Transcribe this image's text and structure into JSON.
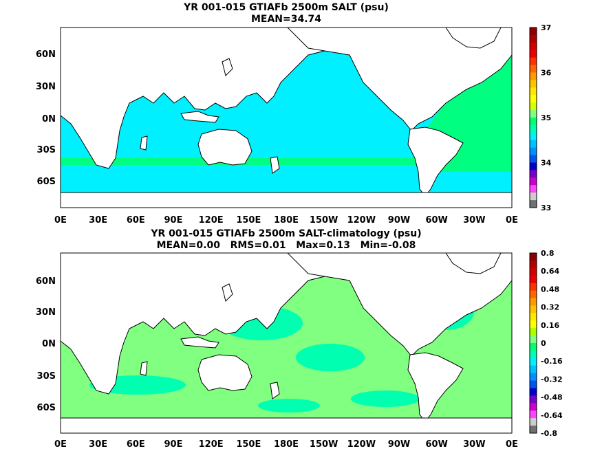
{
  "panels": [
    {
      "title": "YR 001-015 GTIAFb 2500m SALT (psu)",
      "subtitle": "MEAN=34.74",
      "lat_labels": [
        "60N",
        "30N",
        "0N",
        "30S",
        "60S"
      ],
      "lon_labels": [
        "0E",
        "30E",
        "60E",
        "90E",
        "120E",
        "150E",
        "180E",
        "150W",
        "120W",
        "90W",
        "60W",
        "30W",
        "0E"
      ],
      "colorbar": {
        "labels": [
          "37",
          "36",
          "35",
          "34",
          "33"
        ],
        "colors": [
          "#8b0000",
          "#b00000",
          "#d20000",
          "#ee0000",
          "#ff3300",
          "#ff6600",
          "#ff9a00",
          "#ffc400",
          "#ffe800",
          "#ffff00",
          "#d4ff00",
          "#80ff80",
          "#00ff70",
          "#00ffb0",
          "#00f0ff",
          "#00c0ff",
          "#0090ff",
          "#0055ee",
          "#0000cc",
          "#7700cc",
          "#cc00cc",
          "#ff44ff",
          "#cccccc",
          "#707070"
        ]
      },
      "ocean_color": "#00f0ff",
      "field_color_secondary": "#00ff80"
    },
    {
      "title": "YR 001-015 GTIAFb 2500m SALT-climatology (psu)",
      "subtitle": "MEAN=0.00   RMS=0.01   Max=0.13   Min=-0.08",
      "lat_labels": [
        "60N",
        "30N",
        "0N",
        "30S",
        "60S"
      ],
      "lon_labels": [
        "0E",
        "30E",
        "60E",
        "90E",
        "120E",
        "150E",
        "180E",
        "150W",
        "120W",
        "90W",
        "60W",
        "30W",
        "0E"
      ],
      "colorbar": {
        "labels": [
          "0.8",
          "0.64",
          "0.48",
          "0.32",
          "0.16",
          "0",
          "-0.16",
          "-0.32",
          "-0.48",
          "-0.64",
          "-0.8"
        ],
        "colors": [
          "#8b0000",
          "#b00000",
          "#d20000",
          "#ee0000",
          "#ff3300",
          "#ff6600",
          "#ff9a00",
          "#ffc400",
          "#ffe800",
          "#ffff00",
          "#aaff00",
          "#80ff80",
          "#00ff70",
          "#00ffb0",
          "#00f0ff",
          "#00c0ff",
          "#0090ff",
          "#0055ee",
          "#0000cc",
          "#7700cc",
          "#cc00cc",
          "#ff44ff",
          "#cccccc",
          "#707070"
        ]
      },
      "ocean_color": "#80ff80",
      "field_color_secondary": "#00ffb0"
    }
  ]
}
